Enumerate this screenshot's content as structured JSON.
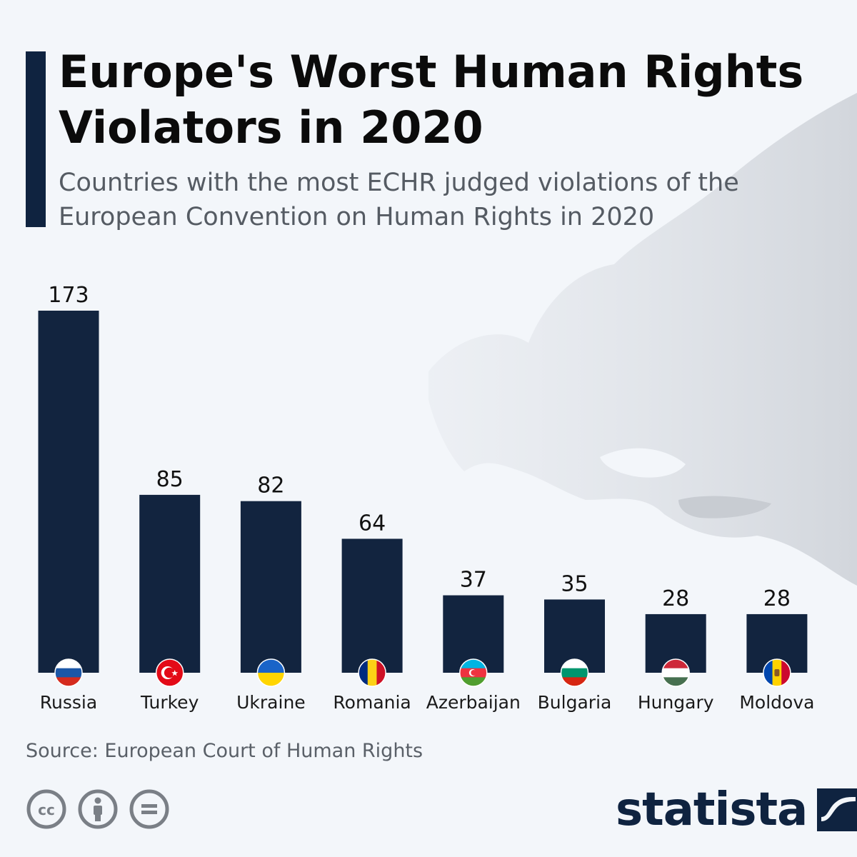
{
  "header": {
    "title": "Europe's Worst Human Rights Violators in 2020",
    "subtitle": "Countries with the most ECHR judged violations of the European Convention on Human Rights in 2020"
  },
  "chart_data": {
    "type": "bar",
    "title": "Europe's Worst Human Rights Violators in 2020",
    "subtitle": "Countries with the most ECHR judged violations of the European Convention on Human Rights in 2020",
    "categories": [
      "Russia",
      "Turkey",
      "Ukraine",
      "Romania",
      "Azerbaijan",
      "Bulgaria",
      "Hungary",
      "Moldova"
    ],
    "values": [
      173,
      85,
      82,
      64,
      37,
      35,
      28,
      28
    ],
    "xlabel": "",
    "ylabel": "",
    "ylim": [
      0,
      173
    ],
    "grid": false,
    "legend": "none",
    "flags": [
      "russia-flag-icon",
      "turkey-flag-icon",
      "ukraine-flag-icon",
      "romania-flag-icon",
      "azerbaijan-flag-icon",
      "bulgaria-flag-icon",
      "hungary-flag-icon",
      "moldova-flag-icon"
    ]
  },
  "colors": {
    "bar": "#12243f",
    "accent": "#0f2340",
    "background": "#f3f6fa",
    "map": "#dfe3e8"
  },
  "footer": {
    "source": "Source: European Court of Human Rights",
    "brand": "statista",
    "license_icons": [
      "creative-commons-icon",
      "attribution-icon",
      "no-derivatives-icon"
    ]
  }
}
